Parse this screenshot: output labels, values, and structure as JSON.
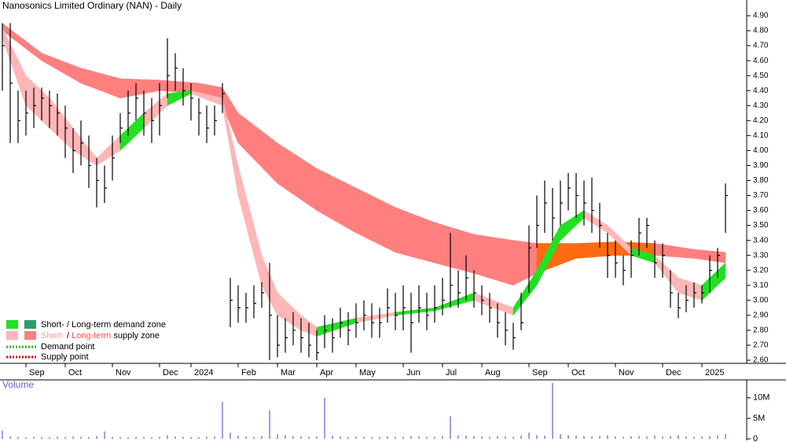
{
  "chart_data": {
    "type": "candlestick",
    "title": "Nanosonics Limited Ordinary (NAN) - Daily",
    "close": [
      4.7,
      4.45,
      4.2,
      4.25,
      4.3,
      4.35,
      4.3,
      4.25,
      4.15,
      4.0,
      4.05,
      3.9,
      3.8,
      3.75,
      3.95,
      4.15,
      4.25,
      4.35,
      4.25,
      4.2,
      4.3,
      4.5,
      4.55,
      4.4,
      4.35,
      4.25,
      4.15,
      4.2,
      4.38,
      3.0,
      2.95,
      2.95,
      2.98,
      3.05,
      2.9,
      2.7,
      2.75,
      2.8,
      2.75,
      2.7,
      2.65,
      2.8,
      2.75,
      2.85,
      2.8,
      2.85,
      2.9,
      2.85,
      2.85,
      2.95,
      2.9,
      2.95,
      2.85,
      2.95,
      2.9,
      2.95,
      3.0,
      3.1,
      3.05,
      3.15,
      3.05,
      3.0,
      2.95,
      2.85,
      2.8,
      2.75,
      2.85,
      3.35,
      3.5,
      3.65,
      3.55,
      3.65,
      3.75,
      3.7,
      3.65,
      3.6,
      3.5,
      3.3,
      3.25,
      3.2,
      3.3,
      3.45,
      3.5,
      3.25,
      3.3,
      3.05,
      2.95,
      3.0,
      3.05,
      3.05,
      3.2,
      3.3,
      3.7
    ],
    "high": [
      4.85,
      4.85,
      4.4,
      4.4,
      4.42,
      4.42,
      4.4,
      4.38,
      4.3,
      4.15,
      4.2,
      4.1,
      3.95,
      3.9,
      4.1,
      4.25,
      4.4,
      4.45,
      4.4,
      4.35,
      4.45,
      4.75,
      4.65,
      4.55,
      4.45,
      4.35,
      4.3,
      4.3,
      4.45,
      3.15,
      3.1,
      3.05,
      3.1,
      3.12,
      3.25,
      2.9,
      2.88,
      2.92,
      2.88,
      2.85,
      2.8,
      2.9,
      2.88,
      2.95,
      2.92,
      2.98,
      3.0,
      2.98,
      2.95,
      3.08,
      3.05,
      3.1,
      3.05,
      3.1,
      3.05,
      3.1,
      3.15,
      3.45,
      3.2,
      3.3,
      3.2,
      3.1,
      3.05,
      2.98,
      2.92,
      2.85,
      3.05,
      3.5,
      3.7,
      3.8,
      3.75,
      3.8,
      3.85,
      3.85,
      3.8,
      3.82,
      3.65,
      3.45,
      3.4,
      3.3,
      3.4,
      3.55,
      3.55,
      3.4,
      3.38,
      3.2,
      3.05,
      3.1,
      3.12,
      3.1,
      3.3,
      3.35,
      3.78
    ],
    "low": [
      4.4,
      4.05,
      4.05,
      4.1,
      4.15,
      4.2,
      4.15,
      4.1,
      3.95,
      3.85,
      3.9,
      3.75,
      3.62,
      3.65,
      3.8,
      4.05,
      4.1,
      4.2,
      4.1,
      4.05,
      4.1,
      4.35,
      4.4,
      4.3,
      4.2,
      4.1,
      4.05,
      4.1,
      4.25,
      2.82,
      2.85,
      2.85,
      2.88,
      2.95,
      2.6,
      2.62,
      2.65,
      2.7,
      2.65,
      2.62,
      2.6,
      2.68,
      2.65,
      2.75,
      2.7,
      2.75,
      2.8,
      2.75,
      2.75,
      2.85,
      2.8,
      2.8,
      2.65,
      2.85,
      2.8,
      2.85,
      2.9,
      2.95,
      2.95,
      3.0,
      2.95,
      2.9,
      2.85,
      2.75,
      2.7,
      2.67,
      2.8,
      3.05,
      3.35,
      3.45,
      3.4,
      3.5,
      3.6,
      3.55,
      3.5,
      3.45,
      3.35,
      3.15,
      3.15,
      3.1,
      3.15,
      3.3,
      3.35,
      3.15,
      3.15,
      2.95,
      2.88,
      2.92,
      2.95,
      2.98,
      3.05,
      3.15,
      3.45
    ],
    "volume": [
      2000000,
      600000,
      500000,
      400000,
      500000,
      450000,
      400000,
      500000,
      450000,
      600000,
      500000,
      450000,
      700000,
      1800000,
      500000,
      450000,
      400000,
      500000,
      450000,
      400000,
      500000,
      900000,
      600000,
      500000,
      450000,
      400000,
      500000,
      600000,
      9000000,
      1500000,
      800000,
      600000,
      500000,
      700000,
      7000000,
      1200000,
      900000,
      700000,
      600000,
      500000,
      600000,
      10000000,
      800000,
      600000,
      500000,
      600000,
      500000,
      450000,
      500000,
      600000,
      550000,
      500000,
      700000,
      600000,
      500000,
      550000,
      700000,
      5500000,
      900000,
      800000,
      700000,
      600000,
      500000,
      700000,
      600000,
      500000,
      800000,
      1500000,
      900000,
      800000,
      13600000,
      1200000,
      900000,
      800000,
      700000,
      600000,
      700000,
      900000,
      600000,
      500000,
      600000,
      700000,
      600000,
      800000,
      600000,
      700000,
      900000,
      600000,
      500000,
      600000,
      700000,
      800000,
      1200000
    ],
    "color": "#000000",
    "volume_color": "#6a5acd",
    "bands": [
      {
        "x": [
          0,
          5,
          10,
          15,
          20,
          25,
          28,
          30,
          35,
          40,
          45,
          50,
          55,
          60,
          65,
          68,
          73,
          78,
          83,
          88,
          92
        ],
        "upper": [
          4.85,
          4.65,
          4.55,
          4.48,
          4.47,
          4.45,
          4.42,
          4.25,
          4.05,
          3.88,
          3.75,
          3.62,
          3.52,
          3.44,
          3.4,
          3.38,
          3.38,
          3.39,
          3.38,
          3.34,
          3.32
        ],
        "lower": [
          4.8,
          4.6,
          4.45,
          4.35,
          4.4,
          4.38,
          4.3,
          4.05,
          3.78,
          3.6,
          3.45,
          3.32,
          3.25,
          3.18,
          3.1,
          3.18,
          3.28,
          3.3,
          3.3,
          3.28,
          3.25
        ],
        "color": "#ff7f7f",
        "active_color": "#ff6a13"
      },
      {
        "x": [
          0,
          3,
          6,
          9,
          12,
          15,
          18,
          21,
          24,
          28,
          30,
          33,
          35,
          38,
          40,
          45,
          50,
          55,
          60,
          65,
          68,
          71,
          74,
          77,
          80,
          83,
          86,
          89,
          92
        ],
        "upper": [
          4.82,
          4.5,
          4.35,
          4.15,
          3.95,
          4.1,
          4.25,
          4.38,
          4.4,
          4.35,
          3.9,
          3.3,
          3.05,
          2.9,
          2.82,
          2.88,
          2.92,
          2.95,
          3.05,
          2.95,
          3.2,
          3.5,
          3.6,
          3.5,
          3.35,
          3.3,
          3.15,
          3.1,
          3.25
        ],
        "lower": [
          4.75,
          4.3,
          4.15,
          4.0,
          3.9,
          4.0,
          4.15,
          4.3,
          4.38,
          4.3,
          3.7,
          3.1,
          2.9,
          2.8,
          2.76,
          2.85,
          2.9,
          2.93,
          3.0,
          2.9,
          3.1,
          3.4,
          3.55,
          3.45,
          3.3,
          3.25,
          3.05,
          3.0,
          3.15
        ],
        "color": "#ffb6b6",
        "active_color": "#22e022"
      }
    ],
    "ylim": [
      2.6,
      4.9
    ],
    "yticks": [
      {
        "value": 2.6,
        "label": "2.60"
      },
      {
        "value": 2.7,
        "label": "2.70"
      },
      {
        "value": 2.8,
        "label": "2.80"
      },
      {
        "value": 2.9,
        "label": "2.90"
      },
      {
        "value": 3.0,
        "label": "3.00"
      },
      {
        "value": 3.1,
        "label": "3.10"
      },
      {
        "value": 3.2,
        "label": "3.20"
      },
      {
        "value": 3.3,
        "label": "3.30"
      },
      {
        "value": 3.4,
        "label": "3.40"
      },
      {
        "value": 3.5,
        "label": "3.50"
      },
      {
        "value": 3.6,
        "label": "3.60"
      },
      {
        "value": 3.7,
        "label": "3.70"
      },
      {
        "value": 3.8,
        "label": "3.80"
      },
      {
        "value": 3.9,
        "label": "3.90"
      },
      {
        "value": 4.0,
        "label": "4.00"
      },
      {
        "value": 4.1,
        "label": "4.10"
      },
      {
        "value": 4.2,
        "label": "4.20"
      },
      {
        "value": 4.3,
        "label": "4.30"
      },
      {
        "value": 4.4,
        "label": "4.40"
      },
      {
        "value": 4.5,
        "label": "4.50"
      },
      {
        "value": 4.6,
        "label": "4.60"
      },
      {
        "value": 4.7,
        "label": "4.70"
      },
      {
        "value": 4.8,
        "label": "4.80"
      },
      {
        "value": 4.9,
        "label": "4.90"
      }
    ],
    "xticks": [
      {
        "value": 3,
        "label": "Sep"
      },
      {
        "value": 8,
        "label": "Oct"
      },
      {
        "value": 14,
        "label": "Nov"
      },
      {
        "value": 20,
        "label": "Dec"
      },
      {
        "value": 24,
        "label": "2024"
      },
      {
        "value": 30,
        "label": "Feb"
      },
      {
        "value": 35,
        "label": "Mar"
      },
      {
        "value": 40,
        "label": "Apr"
      },
      {
        "value": 45,
        "label": "May"
      },
      {
        "value": 51,
        "label": "Jun"
      },
      {
        "value": 56,
        "label": "Jul"
      },
      {
        "value": 61,
        "label": "Aug"
      },
      {
        "value": 67,
        "label": "Sep"
      },
      {
        "value": 72,
        "label": "Oct"
      },
      {
        "value": 78,
        "label": "Nov"
      },
      {
        "value": 84,
        "label": "Dec"
      },
      {
        "value": 89,
        "label": "2025"
      }
    ],
    "volume_label": "Volume",
    "vlim": [
      0,
      13800000
    ],
    "vticks": [
      0,
      {
        "value": 5000000,
        "label": "5M"
      },
      {
        "value": 10000000,
        "label": "10M"
      }
    ],
    "legend": {
      "demand": "Short- / Long-term demand zone",
      "supply_short": "Short-",
      "supply_sep": " / ",
      "supply_long": "Long-term",
      "supply_rest": " supply zone",
      "demand_point": "Demand point",
      "supply_point": "Supply point"
    }
  }
}
